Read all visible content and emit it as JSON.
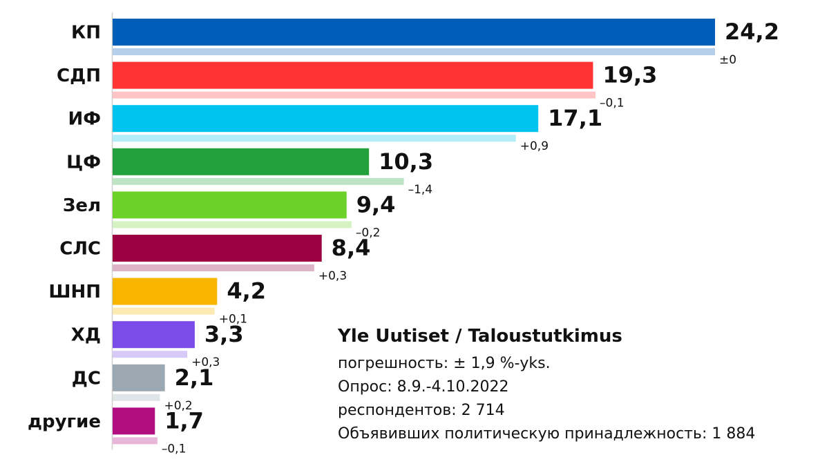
{
  "chart_data": {
    "type": "bar",
    "orientation": "horizontal",
    "categories": [
      "КП",
      "СДП",
      "ИФ",
      "ЦФ",
      "Зел",
      "СЛС",
      "ШНП",
      "ХД",
      "ДС",
      "другие"
    ],
    "values": [
      24.2,
      19.3,
      17.1,
      10.3,
      9.4,
      8.4,
      4.2,
      3.3,
      2.1,
      1.7
    ],
    "value_labels": [
      "24,2",
      "19,3",
      "17,1",
      "10,3",
      "9,4",
      "8,4",
      "4,2",
      "3,3",
      "2,1",
      "1,7"
    ],
    "change_values": [
      0,
      -0.1,
      0.9,
      -1.4,
      -0.2,
      0.3,
      0.1,
      0.3,
      0.2,
      -0.1
    ],
    "change_labels": [
      "±0",
      "–0,1",
      "+0,9",
      "–1,4",
      "–0,2",
      "+0,3",
      "+0,1",
      "+0,3",
      "+0,2",
      "–0,1"
    ],
    "previous_values": [
      24.2,
      19.4,
      16.2,
      11.7,
      9.6,
      8.1,
      4.1,
      3.0,
      1.9,
      1.8
    ],
    "colors": [
      "#005EB8",
      "#FF3334",
      "#00C4F0",
      "#21A03C",
      "#6CD22A",
      "#9B0040",
      "#F7B500",
      "#7C4CE8",
      "#9BA8B1",
      "#B20D80"
    ],
    "previous_colors": [
      "#B5CFEB",
      "#FFC4C5",
      "#B3EDFA",
      "#BEE3C5",
      "#D5F3C2",
      "#DDB3C6",
      "#FDEAB3",
      "#D8CAF8",
      "#E0E5E8",
      "#E8B6D9"
    ],
    "xlim": [
      0,
      24.2
    ]
  },
  "notes": {
    "source": "Yle Uutiset / Taloustutkimus",
    "error_margin": "погрешность: ± 1,9 %-yks.",
    "period": "Опрос: 8.9.-4.10.2022",
    "respondents": "респондентов: 2 714",
    "declared": "Объявивших политическую принадлежность: 1 884"
  }
}
